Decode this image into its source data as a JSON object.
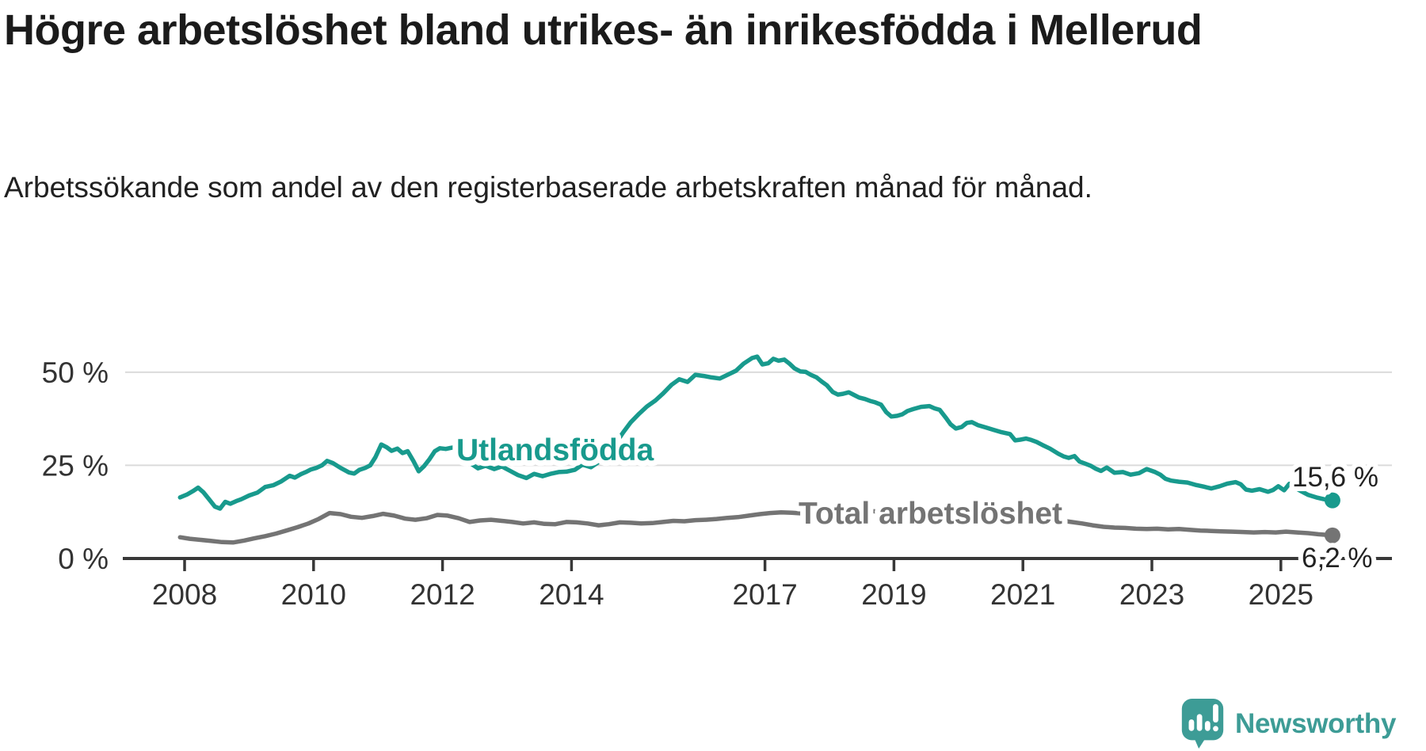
{
  "chart_data": {
    "type": "line",
    "title": "Högre arbetslöshet bland utrikes- än inrikesfödda i Mellerud",
    "subtitle": "Arbetssökande som andel av den registerbaserade arbetskraften månad för månad.",
    "x_axis": {
      "ticks": [
        2008,
        2010,
        2012,
        2014,
        2017,
        2019,
        2021,
        2023,
        2025
      ],
      "range": [
        2007.1,
        2026.8
      ]
    },
    "y_axis": {
      "ticks": [
        {
          "value": 0,
          "label": "0 %"
        },
        {
          "value": 25,
          "label": "25 %"
        },
        {
          "value": 50,
          "label": "50 %"
        }
      ],
      "range": [
        0,
        58
      ],
      "unit": "%"
    },
    "grid": "horizontal",
    "legend": "inline-labels",
    "series": [
      {
        "name": "Utlandsfödda",
        "color": "#189A8D",
        "end_label": "15,6 %",
        "end_value": 15.6,
        "points": [
          [
            2007.93,
            16.4
          ],
          [
            2008.04,
            17.2
          ],
          [
            2008.13,
            18.1
          ],
          [
            2008.21,
            19.0
          ],
          [
            2008.29,
            17.8
          ],
          [
            2008.38,
            15.9
          ],
          [
            2008.47,
            13.9
          ],
          [
            2008.55,
            13.4
          ],
          [
            2008.63,
            15.2
          ],
          [
            2008.71,
            14.7
          ],
          [
            2008.8,
            15.4
          ],
          [
            2008.88,
            15.9
          ],
          [
            2009.0,
            16.9
          ],
          [
            2009.13,
            17.7
          ],
          [
            2009.25,
            19.2
          ],
          [
            2009.38,
            19.7
          ],
          [
            2009.5,
            20.7
          ],
          [
            2009.63,
            22.2
          ],
          [
            2009.71,
            21.7
          ],
          [
            2009.8,
            22.6
          ],
          [
            2009.88,
            23.2
          ],
          [
            2009.96,
            23.9
          ],
          [
            2010.04,
            24.3
          ],
          [
            2010.13,
            25.0
          ],
          [
            2010.21,
            26.2
          ],
          [
            2010.3,
            25.6
          ],
          [
            2010.42,
            24.3
          ],
          [
            2010.55,
            23.1
          ],
          [
            2010.63,
            22.8
          ],
          [
            2010.71,
            23.8
          ],
          [
            2010.8,
            24.3
          ],
          [
            2010.88,
            25.0
          ],
          [
            2010.96,
            27.2
          ],
          [
            2011.05,
            30.6
          ],
          [
            2011.13,
            29.9
          ],
          [
            2011.21,
            28.9
          ],
          [
            2011.3,
            29.5
          ],
          [
            2011.38,
            28.3
          ],
          [
            2011.46,
            28.8
          ],
          [
            2011.55,
            26.1
          ],
          [
            2011.63,
            23.4
          ],
          [
            2011.71,
            24.7
          ],
          [
            2011.8,
            26.7
          ],
          [
            2011.88,
            28.8
          ],
          [
            2011.96,
            29.6
          ],
          [
            2012.05,
            29.4
          ],
          [
            2012.13,
            29.7
          ],
          [
            2012.21,
            29.9
          ],
          [
            2012.3,
            28.5
          ],
          [
            2012.42,
            25.7
          ],
          [
            2012.55,
            24.2
          ],
          [
            2012.67,
            24.9
          ],
          [
            2012.8,
            24.0
          ],
          [
            2012.92,
            24.7
          ],
          [
            2013.05,
            23.5
          ],
          [
            2013.17,
            22.4
          ],
          [
            2013.3,
            21.6
          ],
          [
            2013.42,
            22.7
          ],
          [
            2013.55,
            22.1
          ],
          [
            2013.67,
            22.7
          ],
          [
            2013.8,
            23.2
          ],
          [
            2013.92,
            23.3
          ],
          [
            2014.05,
            23.8
          ],
          [
            2014.17,
            25.2
          ],
          [
            2014.3,
            24.5
          ],
          [
            2014.42,
            25.9
          ],
          [
            2014.55,
            27.8
          ],
          [
            2014.67,
            30.5
          ],
          [
            2014.8,
            33.8
          ],
          [
            2014.92,
            36.6
          ],
          [
            2015.05,
            38.9
          ],
          [
            2015.17,
            40.8
          ],
          [
            2015.3,
            42.4
          ],
          [
            2015.42,
            44.3
          ],
          [
            2015.55,
            46.6
          ],
          [
            2015.67,
            48.1
          ],
          [
            2015.8,
            47.4
          ],
          [
            2015.92,
            49.3
          ],
          [
            2016.05,
            49.0
          ],
          [
            2016.17,
            48.6
          ],
          [
            2016.3,
            48.3
          ],
          [
            2016.42,
            49.3
          ],
          [
            2016.55,
            50.4
          ],
          [
            2016.67,
            52.3
          ],
          [
            2016.8,
            53.8
          ],
          [
            2016.88,
            54.2
          ],
          [
            2016.96,
            52.1
          ],
          [
            2017.05,
            52.4
          ],
          [
            2017.13,
            53.6
          ],
          [
            2017.21,
            53.1
          ],
          [
            2017.3,
            53.4
          ],
          [
            2017.38,
            52.3
          ],
          [
            2017.46,
            51.0
          ],
          [
            2017.55,
            50.2
          ],
          [
            2017.63,
            50.1
          ],
          [
            2017.71,
            49.3
          ],
          [
            2017.8,
            48.6
          ],
          [
            2017.88,
            47.5
          ],
          [
            2017.96,
            46.5
          ],
          [
            2018.05,
            44.7
          ],
          [
            2018.13,
            44.0
          ],
          [
            2018.21,
            44.2
          ],
          [
            2018.3,
            44.6
          ],
          [
            2018.38,
            43.9
          ],
          [
            2018.46,
            43.2
          ],
          [
            2018.55,
            42.8
          ],
          [
            2018.63,
            42.3
          ],
          [
            2018.71,
            41.9
          ],
          [
            2018.8,
            41.3
          ],
          [
            2018.88,
            39.3
          ],
          [
            2018.96,
            38.1
          ],
          [
            2019.05,
            38.3
          ],
          [
            2019.13,
            38.7
          ],
          [
            2019.21,
            39.6
          ],
          [
            2019.3,
            40.1
          ],
          [
            2019.42,
            40.7
          ],
          [
            2019.55,
            40.9
          ],
          [
            2019.63,
            40.3
          ],
          [
            2019.71,
            39.9
          ],
          [
            2019.8,
            37.9
          ],
          [
            2019.88,
            36.0
          ],
          [
            2019.96,
            34.9
          ],
          [
            2020.05,
            35.3
          ],
          [
            2020.13,
            36.4
          ],
          [
            2020.21,
            36.6
          ],
          [
            2020.3,
            35.8
          ],
          [
            2020.42,
            35.2
          ],
          [
            2020.55,
            34.5
          ],
          [
            2020.67,
            33.9
          ],
          [
            2020.8,
            33.4
          ],
          [
            2020.88,
            31.7
          ],
          [
            2020.96,
            31.9
          ],
          [
            2021.05,
            32.2
          ],
          [
            2021.13,
            31.8
          ],
          [
            2021.21,
            31.3
          ],
          [
            2021.3,
            30.5
          ],
          [
            2021.42,
            29.5
          ],
          [
            2021.55,
            28.1
          ],
          [
            2021.63,
            27.4
          ],
          [
            2021.71,
            27.0
          ],
          [
            2021.8,
            27.5
          ],
          [
            2021.88,
            26.0
          ],
          [
            2021.96,
            25.5
          ],
          [
            2022.05,
            24.9
          ],
          [
            2022.13,
            24.1
          ],
          [
            2022.21,
            23.5
          ],
          [
            2022.3,
            24.4
          ],
          [
            2022.42,
            23.0
          ],
          [
            2022.55,
            23.2
          ],
          [
            2022.67,
            22.5
          ],
          [
            2022.8,
            22.9
          ],
          [
            2022.92,
            24.0
          ],
          [
            2023.05,
            23.2
          ],
          [
            2023.13,
            22.5
          ],
          [
            2023.21,
            21.4
          ],
          [
            2023.3,
            20.9
          ],
          [
            2023.42,
            20.6
          ],
          [
            2023.55,
            20.4
          ],
          [
            2023.67,
            19.8
          ],
          [
            2023.8,
            19.3
          ],
          [
            2023.92,
            18.8
          ],
          [
            2024.05,
            19.4
          ],
          [
            2024.17,
            20.1
          ],
          [
            2024.3,
            20.5
          ],
          [
            2024.38,
            19.9
          ],
          [
            2024.46,
            18.5
          ],
          [
            2024.55,
            18.2
          ],
          [
            2024.67,
            18.6
          ],
          [
            2024.8,
            17.9
          ],
          [
            2024.88,
            18.4
          ],
          [
            2024.96,
            19.4
          ],
          [
            2025.05,
            18.3
          ],
          [
            2025.13,
            20.0
          ],
          [
            2025.21,
            19.1
          ],
          [
            2025.3,
            18.2
          ],
          [
            2025.42,
            17.1
          ],
          [
            2025.55,
            16.4
          ],
          [
            2025.67,
            15.9
          ],
          [
            2025.8,
            15.6
          ]
        ]
      },
      {
        "name": "Total arbetslöshet",
        "color": "#747474",
        "end_label": "6,2 %",
        "end_value": 6.2,
        "points": [
          [
            2007.93,
            5.7
          ],
          [
            2008.08,
            5.3
          ],
          [
            2008.25,
            5.0
          ],
          [
            2008.42,
            4.7
          ],
          [
            2008.58,
            4.4
          ],
          [
            2008.75,
            4.3
          ],
          [
            2008.92,
            4.8
          ],
          [
            2009.08,
            5.4
          ],
          [
            2009.25,
            6.0
          ],
          [
            2009.42,
            6.7
          ],
          [
            2009.58,
            7.5
          ],
          [
            2009.75,
            8.4
          ],
          [
            2009.92,
            9.4
          ],
          [
            2010.08,
            10.6
          ],
          [
            2010.25,
            12.2
          ],
          [
            2010.42,
            11.9
          ],
          [
            2010.58,
            11.2
          ],
          [
            2010.75,
            10.9
          ],
          [
            2010.92,
            11.4
          ],
          [
            2011.08,
            12.0
          ],
          [
            2011.25,
            11.5
          ],
          [
            2011.42,
            10.7
          ],
          [
            2011.58,
            10.4
          ],
          [
            2011.75,
            10.8
          ],
          [
            2011.92,
            11.7
          ],
          [
            2012.08,
            11.5
          ],
          [
            2012.25,
            10.8
          ],
          [
            2012.42,
            9.8
          ],
          [
            2012.58,
            10.2
          ],
          [
            2012.75,
            10.4
          ],
          [
            2012.92,
            10.1
          ],
          [
            2013.08,
            9.8
          ],
          [
            2013.25,
            9.4
          ],
          [
            2013.42,
            9.7
          ],
          [
            2013.58,
            9.3
          ],
          [
            2013.75,
            9.2
          ],
          [
            2013.92,
            9.8
          ],
          [
            2014.08,
            9.7
          ],
          [
            2014.25,
            9.4
          ],
          [
            2014.42,
            8.9
          ],
          [
            2014.58,
            9.2
          ],
          [
            2014.75,
            9.7
          ],
          [
            2014.92,
            9.6
          ],
          [
            2015.08,
            9.4
          ],
          [
            2015.25,
            9.5
          ],
          [
            2015.42,
            9.8
          ],
          [
            2015.58,
            10.1
          ],
          [
            2015.75,
            10.0
          ],
          [
            2015.92,
            10.3
          ],
          [
            2016.08,
            10.4
          ],
          [
            2016.25,
            10.6
          ],
          [
            2016.42,
            10.9
          ],
          [
            2016.58,
            11.1
          ],
          [
            2016.75,
            11.5
          ],
          [
            2016.92,
            11.9
          ],
          [
            2017.08,
            12.2
          ],
          [
            2017.25,
            12.4
          ],
          [
            2017.42,
            12.3
          ],
          [
            2017.58,
            12.1
          ],
          [
            2017.75,
            12.4
          ],
          [
            2017.92,
            12.7
          ],
          [
            2018.08,
            12.6
          ],
          [
            2018.25,
            12.8
          ],
          [
            2018.42,
            13.0
          ],
          [
            2018.58,
            12.8
          ],
          [
            2018.75,
            12.6
          ],
          [
            2018.92,
            12.4
          ],
          [
            2019.08,
            12.3
          ],
          [
            2019.25,
            12.5
          ],
          [
            2019.42,
            12.2
          ],
          [
            2019.58,
            11.9
          ],
          [
            2019.75,
            11.6
          ],
          [
            2019.92,
            11.4
          ],
          [
            2020.08,
            11.9
          ],
          [
            2020.25,
            12.5
          ],
          [
            2020.42,
            12.8
          ],
          [
            2020.58,
            12.4
          ],
          [
            2020.75,
            12.0
          ],
          [
            2020.92,
            11.6
          ],
          [
            2021.08,
            11.2
          ],
          [
            2021.25,
            10.9
          ],
          [
            2021.42,
            10.5
          ],
          [
            2021.58,
            10.2
          ],
          [
            2021.75,
            9.8
          ],
          [
            2021.92,
            9.4
          ],
          [
            2022.08,
            8.9
          ],
          [
            2022.25,
            8.5
          ],
          [
            2022.42,
            8.3
          ],
          [
            2022.58,
            8.2
          ],
          [
            2022.75,
            8.0
          ],
          [
            2022.92,
            7.9
          ],
          [
            2023.08,
            8.0
          ],
          [
            2023.25,
            7.8
          ],
          [
            2023.42,
            7.9
          ],
          [
            2023.58,
            7.7
          ],
          [
            2023.75,
            7.5
          ],
          [
            2023.92,
            7.4
          ],
          [
            2024.08,
            7.3
          ],
          [
            2024.25,
            7.2
          ],
          [
            2024.42,
            7.1
          ],
          [
            2024.58,
            7.0
          ],
          [
            2024.75,
            7.1
          ],
          [
            2024.92,
            7.0
          ],
          [
            2025.08,
            7.2
          ],
          [
            2025.25,
            7.0
          ],
          [
            2025.42,
            6.8
          ],
          [
            2025.58,
            6.5
          ],
          [
            2025.8,
            6.2
          ]
        ]
      }
    ]
  },
  "branding": {
    "name": "Newsworthy",
    "color": "#3D9C96",
    "icon": "newsworthy-speech-bubble-chart-icon"
  },
  "colors": {
    "background": "#FFFFFF",
    "title": "#1B1B1B",
    "subtitle": "#212121",
    "axis_text": "#333333",
    "axis_line": "#383838",
    "gridline": "#DBDBDB",
    "series_teal": "#189A8D",
    "series_gray": "#747474",
    "value_label": "#222222"
  }
}
